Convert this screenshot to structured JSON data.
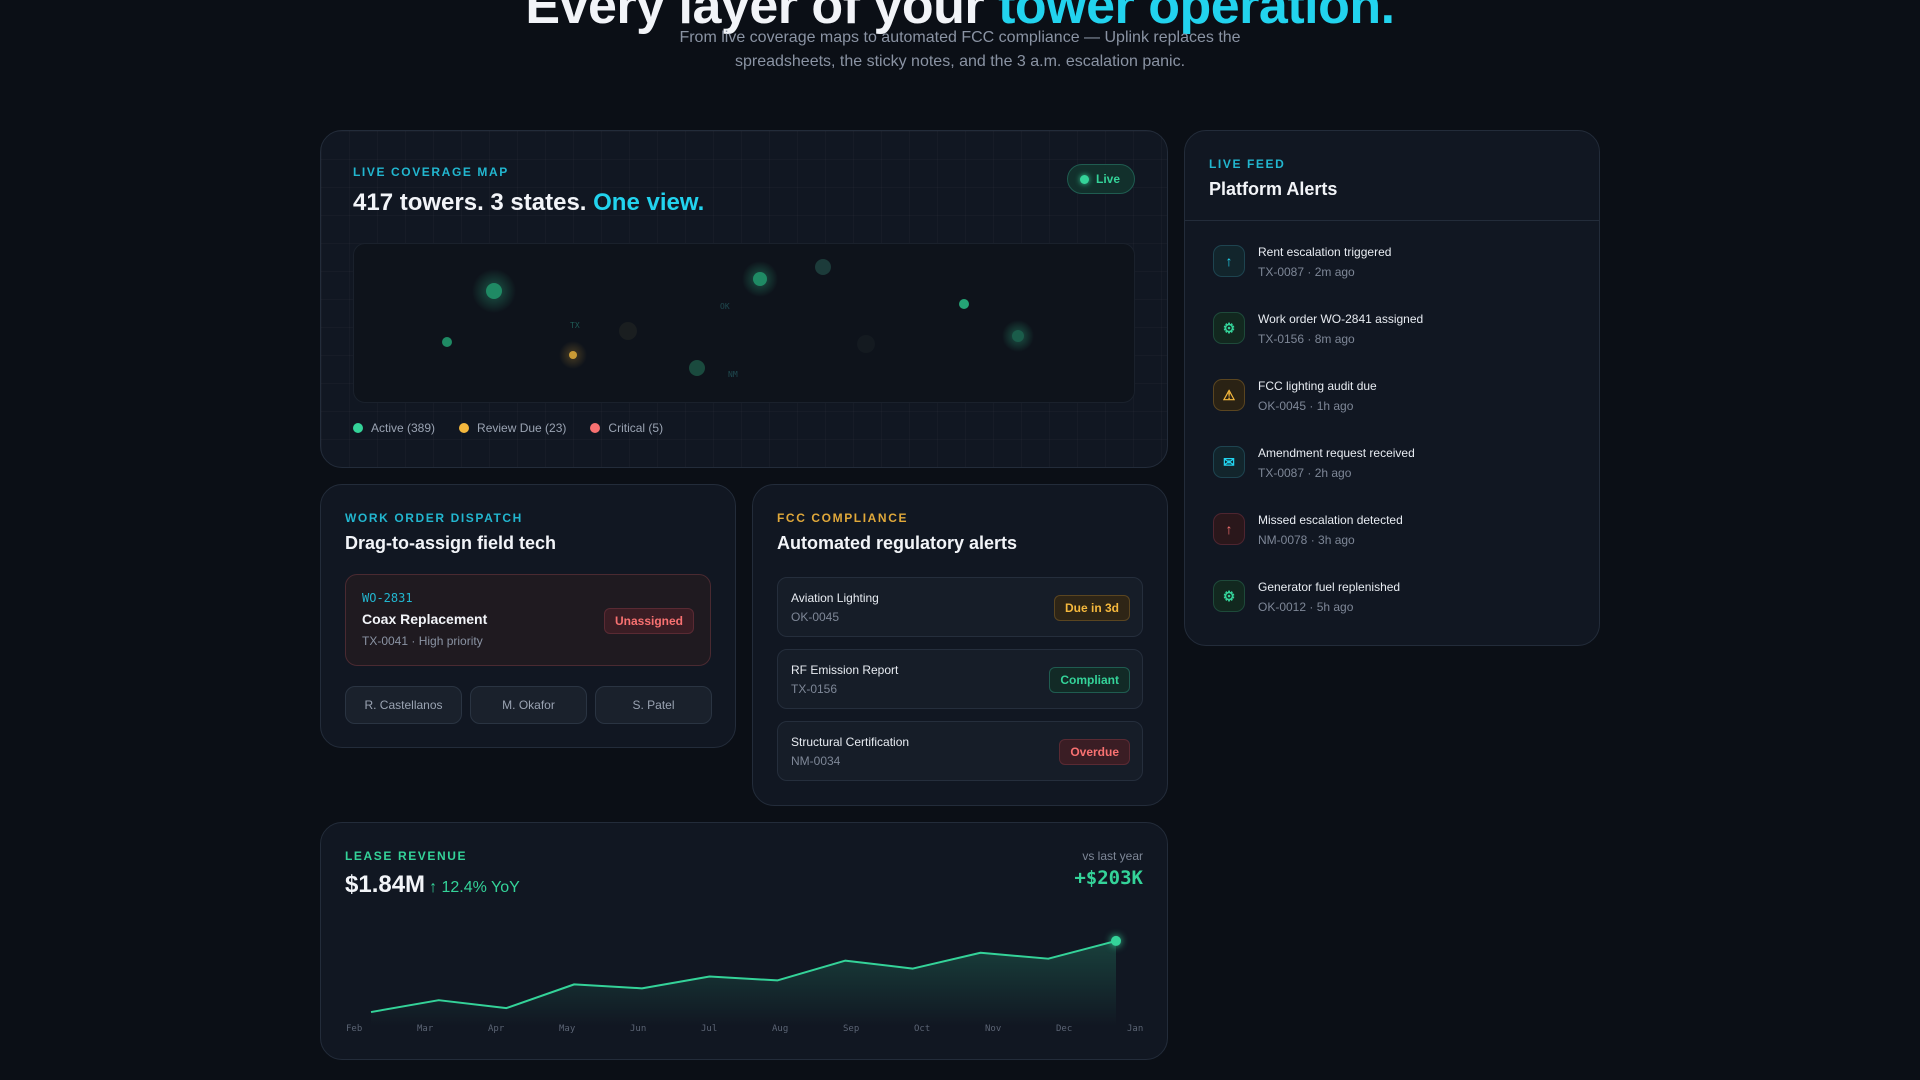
{
  "hero": {
    "title_main": "Every layer of your ",
    "title_accent": "tower operation.",
    "subtitle": "From live coverage maps to automated FCC compliance — Uplink replaces the spreadsheets, the sticky notes, and the 3 a.m. escalation panic."
  },
  "map": {
    "eyebrow": "Live Coverage Map",
    "title_main": "417 towers. 3 states. ",
    "title_accent": "One view.",
    "live_label": "Live",
    "legend": [
      {
        "label": "Active (389)",
        "color": "#34d399"
      },
      {
        "label": "Review Due (23)",
        "color": "#f5b83d"
      },
      {
        "label": "Critical (5)",
        "color": "#f87171"
      }
    ],
    "region_labels": [
      "TX",
      "OK",
      "NM"
    ]
  },
  "work_order": {
    "eyebrow": "Work Order Dispatch",
    "title": "Drag-to-assign field tech",
    "id": "WO-2831",
    "name": "Coax Replacement",
    "meta": "TX-0041 · High priority",
    "status": "Unassigned",
    "techs": [
      "R. Castellanos",
      "M. Okafor",
      "S. Patel"
    ]
  },
  "fcc": {
    "eyebrow": "FCC Compliance",
    "title": "Automated regulatory alerts",
    "items": [
      {
        "name": "Aviation Lighting",
        "code": "OK-0045",
        "status": "Due in 3d"
      },
      {
        "name": "RF Emission Report",
        "code": "TX-0156",
        "status": "Compliant"
      },
      {
        "name": "Structural Certification",
        "code": "NM-0034",
        "status": "Overdue"
      }
    ]
  },
  "revenue": {
    "eyebrow": "Lease Revenue",
    "amount": "$1.84M",
    "yoy": "↑ 12.4% YoY",
    "vs_label": "vs last year",
    "delta": "+$203K"
  },
  "feed": {
    "eyebrow": "Live Feed",
    "title": "Platform Alerts",
    "items": [
      {
        "text": "Rent escalation triggered",
        "meta": "TX-0087 · 2m ago",
        "icon": "↑",
        "icon_name": "arrow-up-icon",
        "tone": "cyan"
      },
      {
        "text": "Work order WO-2841 assigned",
        "meta": "TX-0156 · 8m ago",
        "icon": "⚙",
        "icon_name": "gear-icon",
        "tone": "green"
      },
      {
        "text": "FCC lighting audit due",
        "meta": "OK-0045 · 1h ago",
        "icon": "⚠",
        "icon_name": "warning-icon",
        "tone": "amber"
      },
      {
        "text": "Amendment request received",
        "meta": "TX-0087 · 2h ago",
        "icon": "✉",
        "icon_name": "mail-icon",
        "tone": "cyan"
      },
      {
        "text": "Missed escalation detected",
        "meta": "NM-0078 · 3h ago",
        "icon": "↑",
        "icon_name": "arrow-up-icon",
        "tone": "red"
      },
      {
        "text": "Generator fuel replenished",
        "meta": "OK-0012 · 5h ago",
        "icon": "⚙",
        "icon_name": "gear-icon",
        "tone": "green"
      }
    ]
  },
  "chart_data": {
    "type": "area",
    "categories": [
      "Feb",
      "Mar",
      "Apr",
      "May",
      "Jun",
      "Jul",
      "Aug",
      "Sep",
      "Oct",
      "Nov",
      "Dec",
      "Jan"
    ],
    "values": [
      1.64,
      1.67,
      1.65,
      1.71,
      1.7,
      1.73,
      1.72,
      1.77,
      1.75,
      1.79,
      1.775,
      1.82
    ],
    "ylim": [
      1.63,
      1.84
    ],
    "color": "#34d399",
    "grid": false,
    "title": "",
    "xlabel": "",
    "ylabel": ""
  }
}
